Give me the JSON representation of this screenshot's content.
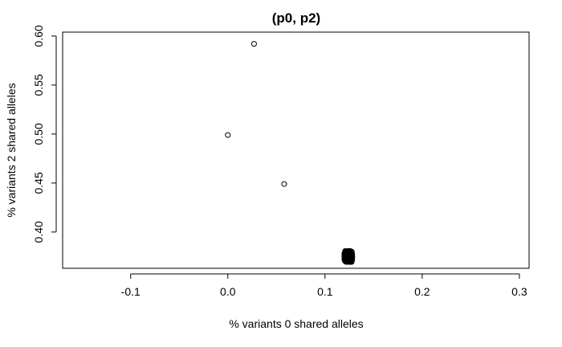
{
  "chart_data": {
    "type": "scatter",
    "title": "(p0, p2)",
    "xlabel": "% variants 0 shared alleles",
    "ylabel": "% variants 2 shared alleles",
    "xlim": [
      -0.17,
      0.31
    ],
    "ylim": [
      0.363,
      0.604
    ],
    "grid": false,
    "legend": "none",
    "x_ticks": [
      -0.1,
      0.0,
      0.1,
      0.2,
      0.3
    ],
    "x_tick_labels": [
      "-0.1",
      "0.0",
      "0.1",
      "0.2",
      "0.3"
    ],
    "y_ticks": [
      0.4,
      0.45,
      0.5,
      0.55,
      0.6
    ],
    "y_tick_labels": [
      "0.40",
      "0.45",
      "0.50",
      "0.55",
      "0.60"
    ],
    "points": [
      {
        "x": 0.027,
        "y": 0.592
      },
      {
        "x": 0.0,
        "y": 0.499
      },
      {
        "x": 0.058,
        "y": 0.449
      }
    ],
    "cluster": {
      "center_x": 0.124,
      "center_y": 0.375,
      "spread_x": 0.004,
      "spread_y": 0.005,
      "count": 240
    },
    "marker": "open-circle",
    "marker_color": "#000000"
  }
}
